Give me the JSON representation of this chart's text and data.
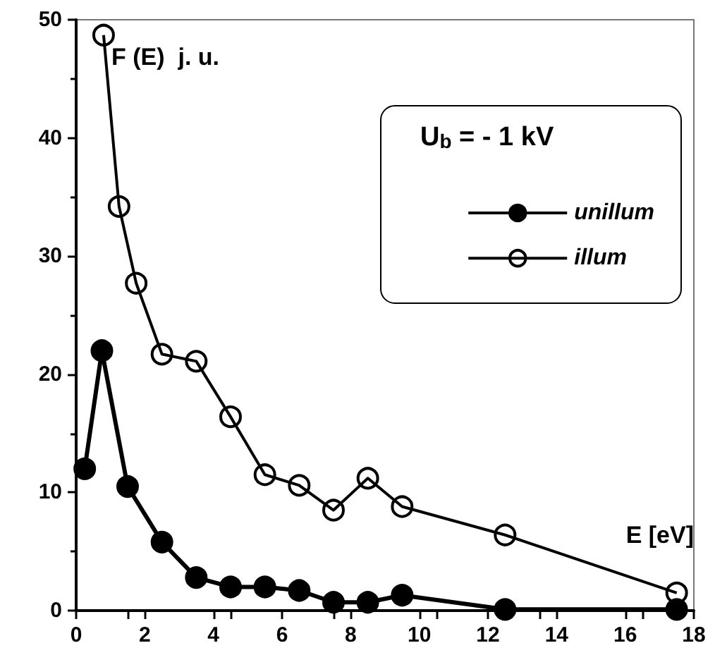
{
  "chart_data": {
    "type": "line",
    "xlabel": "E [eV]",
    "ylabel": "F (E)  j. u.",
    "legend_title": "U$_{b}$ = - 1 kV",
    "xlim": [
      0,
      18
    ],
    "xticks": [
      0,
      2,
      4,
      6,
      8,
      10,
      12,
      14,
      16,
      18
    ],
    "ylim": [
      0,
      50
    ],
    "yticks": [
      0,
      10,
      20,
      30,
      40,
      50
    ],
    "grid": false,
    "legend": "top right",
    "marker": "circle",
    "line_style": "solid",
    "series": [
      {
        "name": "unillum",
        "color": "#000000",
        "x": [
          0.25,
          0.75,
          1.5,
          2.5,
          3.5,
          4.5,
          5.5,
          6.5,
          7.5,
          8.5,
          9.5,
          12.5,
          17.5
        ],
        "values": [
          12,
          22,
          10.5,
          5.8,
          2.8,
          2,
          2,
          1.7,
          0.7,
          0.7,
          1.3,
          0.1,
          0.1
        ]
      },
      {
        "name": "illum",
        "color": "#000000",
        "x": [
          0.8,
          1.25,
          1.75,
          2.5,
          3.5,
          4.5,
          5.5,
          6.5,
          7.5,
          8.5,
          9.5,
          12.5,
          17.5
        ],
        "values": [
          48.7,
          34.2,
          27.7,
          21.7,
          21.1,
          16.4,
          11.5,
          10.6,
          8.5,
          11.2,
          8.8,
          6.4,
          1.5
        ]
      }
    ]
  }
}
